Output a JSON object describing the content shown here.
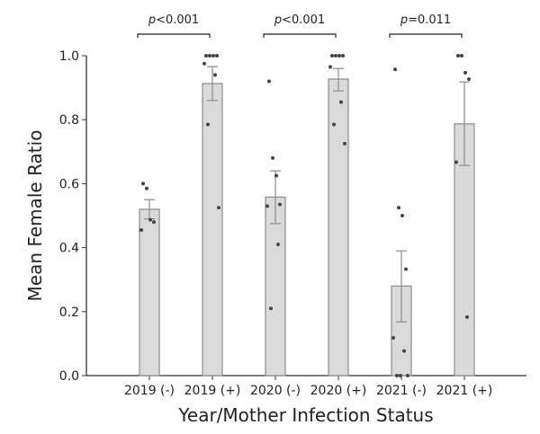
{
  "chart_data": {
    "type": "bar",
    "xlabel": "Year/Mother Infection Status",
    "ylabel": "Mean Female Ratio",
    "ylim": [
      0,
      1.0
    ],
    "yticks": [
      "0.0",
      "0.2",
      "0.4",
      "0.6",
      "0.8",
      "1.0"
    ],
    "categories": [
      "2019 (-)",
      "2019 (+)",
      "2020 (-)",
      "2020 (+)",
      "2021 (-)",
      "2021 (+)"
    ],
    "values": [
      0.52,
      0.913,
      0.558,
      0.927,
      0.28,
      0.787
    ],
    "error_low": [
      0.49,
      0.86,
      0.475,
      0.89,
      0.168,
      0.657
    ],
    "error_high": [
      0.55,
      0.966,
      0.64,
      0.96,
      0.39,
      0.918
    ],
    "points": [
      [
        0.6,
        0.585,
        0.487,
        0.48,
        0.455
      ],
      [
        1.0,
        1.0,
        1.0,
        1.0,
        0.975,
        0.94,
        0.785,
        0.525
      ],
      [
        0.92,
        0.68,
        0.625,
        0.535,
        0.53,
        0.41,
        0.21
      ],
      [
        1.0,
        1.0,
        1.0,
        1.0,
        0.965,
        0.855,
        0.785,
        0.725
      ],
      [
        0.957,
        0.525,
        0.5,
        0.333,
        0.118,
        0.077,
        0.0,
        0.0,
        0.0
      ],
      [
        1.0,
        1.0,
        0.947,
        0.927,
        0.667,
        0.183
      ]
    ],
    "comparisons": [
      {
        "from": 0,
        "to": 1,
        "label_p": "p",
        "label_rest": "<0.001"
      },
      {
        "from": 2,
        "to": 3,
        "label_p": "p",
        "label_rest": "<0.001"
      },
      {
        "from": 4,
        "to": 5,
        "label_p": "p",
        "label_rest": "=0.011"
      }
    ],
    "colors": {
      "bar_fill": "#dadada",
      "bar_edge": "#8c8c8c",
      "error": "#8c8c8c",
      "points": "#444444",
      "axis": "#333333"
    },
    "grid": false
  }
}
